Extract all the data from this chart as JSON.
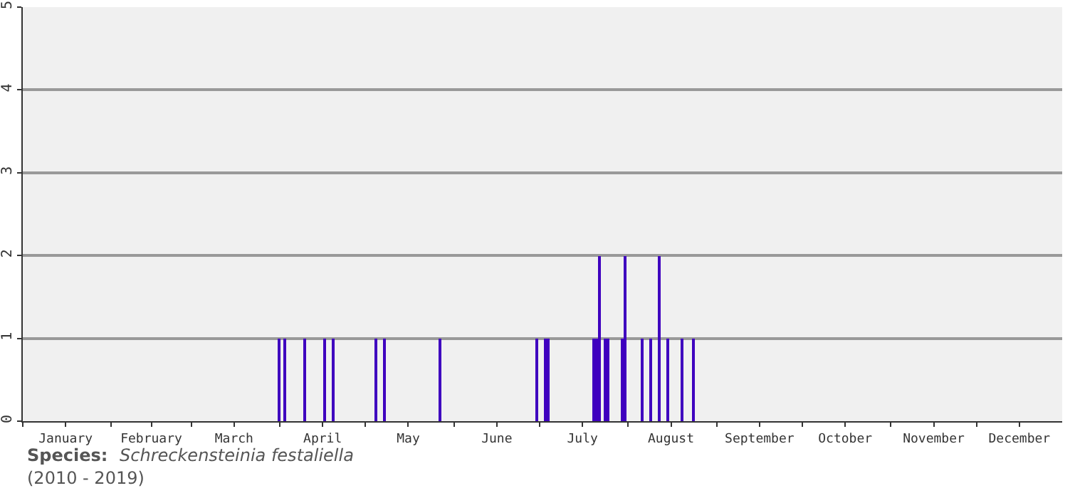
{
  "chart_data": {
    "type": "bar",
    "x": [
      "--04-01",
      "--04-03",
      "--04-10",
      "--04-17",
      "--04-20",
      "--05-05",
      "--05-08",
      "--05-27",
      "--06-30",
      "--07-03",
      "--07-04",
      "--07-20",
      "--07-21",
      "--07-22",
      "--07-24",
      "--07-25",
      "--07-30",
      "--07-31",
      "--08-06",
      "--08-09",
      "--08-12",
      "--08-15",
      "--08-20",
      "--08-24"
    ],
    "values": [
      1,
      1,
      1,
      1,
      1,
      1,
      1,
      1,
      1,
      1,
      1,
      1,
      1,
      2,
      1,
      1,
      1,
      2,
      1,
      1,
      2,
      1,
      1,
      1
    ],
    "color": "#3f00bf",
    "xlim": [
      "--01-01",
      "--12-31"
    ],
    "xticks": [
      {
        "value": "--01-01",
        "label": null
      },
      {
        "value": "--01-16",
        "label": "January"
      },
      {
        "value": "--02-01",
        "label": null
      },
      {
        "value": "--02-15",
        "label": "February"
      },
      {
        "value": "--03-01",
        "label": null
      },
      {
        "value": "--03-16",
        "label": "March"
      },
      {
        "value": "--04-01",
        "label": null
      },
      {
        "value": "--04-16",
        "label": "April"
      },
      {
        "value": "--05-01",
        "label": null
      },
      {
        "value": "--05-16",
        "label": "May"
      },
      {
        "value": "--06-01",
        "label": null
      },
      {
        "value": "--06-16",
        "label": "June"
      },
      {
        "value": "--07-01",
        "label": null
      },
      {
        "value": "--07-16",
        "label": "July"
      },
      {
        "value": "--08-01",
        "label": null
      },
      {
        "value": "--08-16",
        "label": "August"
      },
      {
        "value": "--09-01",
        "label": null
      },
      {
        "value": "--09-16",
        "label": "September"
      },
      {
        "value": "--10-01",
        "label": null
      },
      {
        "value": "--10-16",
        "label": "October"
      },
      {
        "value": "--11-01",
        "label": null
      },
      {
        "value": "--11-16",
        "label": "November"
      },
      {
        "value": "--12-01",
        "label": null
      },
      {
        "value": "--12-16",
        "label": "December"
      }
    ],
    "ylim": [
      0,
      5
    ],
    "yticks": [
      0,
      1,
      2,
      3,
      4,
      5
    ],
    "grid": "y",
    "annotations": [
      "Species:",
      "Schreckensteinia festaliella",
      "(2010 - 2019)"
    ]
  }
}
